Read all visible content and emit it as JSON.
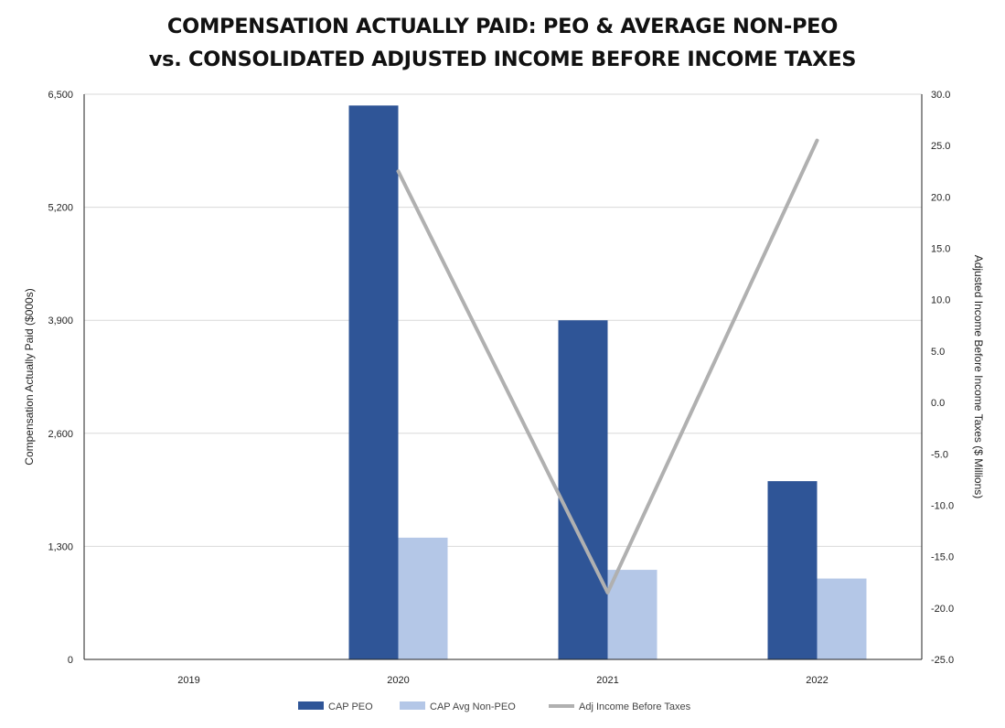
{
  "title_line1": "COMPENSATION ACTUALLY PAID: PEO & AVERAGE NON-PEO",
  "title_line2": "vs. CONSOLIDATED ADJUSTED INCOME BEFORE INCOME TAXES",
  "chart_data": {
    "type": "bar",
    "title": "COMPENSATION ACTUALLY PAID: PEO & AVERAGE NON-PEO vs. CONSOLIDATED ADJUSTED INCOME BEFORE INCOME TAXES",
    "categories": [
      "2019",
      "2020",
      "2021",
      "2022"
    ],
    "ylabel": "Compensation Actually Paid ($000s)",
    "ylim": [
      0,
      6500
    ],
    "yticks": [
      "0",
      "1,300",
      "2,600",
      "3,900",
      "5,200",
      "6,500"
    ],
    "y2label": "Adjusted Income Before Income Taxes ($ Millions)",
    "y2lim": [
      -25.0,
      30.0
    ],
    "y2ticks": [
      "-25.0",
      "-20.0",
      "-15.0",
      "-10.0",
      "-5.0",
      "0.0",
      "5.0",
      "10.0",
      "15.0",
      "20.0",
      "25.0",
      "30.0"
    ],
    "grid": true,
    "legend_position": "bottom",
    "series": [
      {
        "name": "CAP PEO",
        "type": "bar",
        "axis": "left",
        "color": "#2f5597",
        "values": [
          null,
          6370,
          3900,
          2050
        ]
      },
      {
        "name": "CAP Avg Non-PEO",
        "type": "bar",
        "axis": "left",
        "color": "#b4c7e7",
        "values": [
          null,
          1400,
          1030,
          930
        ]
      },
      {
        "name": "Adj Income Before Taxes",
        "type": "line",
        "axis": "right",
        "color": "#b0b0b0",
        "values": [
          null,
          22.5,
          -18.5,
          25.5
        ]
      }
    ]
  }
}
